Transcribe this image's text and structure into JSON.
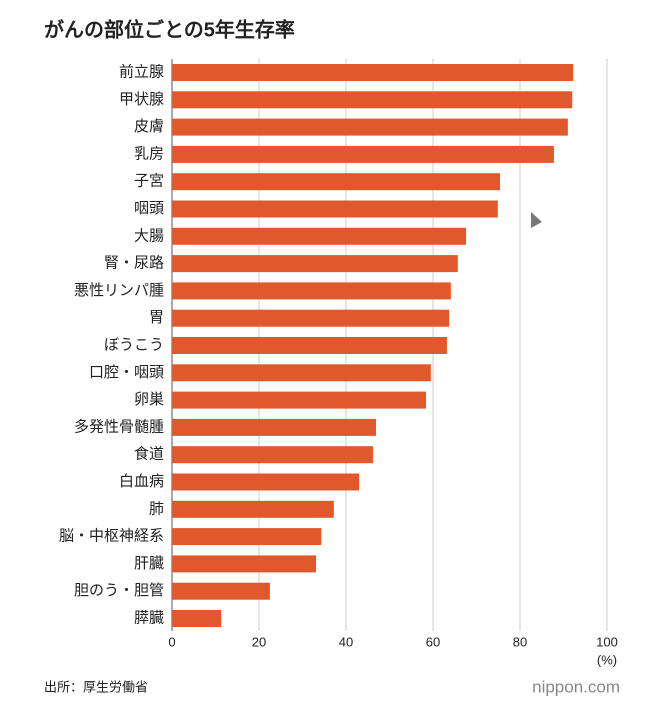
{
  "chart_data": {
    "type": "hbar",
    "title": "がんの部位ごとの5年生存率",
    "categories": [
      "前立腺",
      "甲状腺",
      "皮膚",
      "乳房",
      "子宮",
      "咽頭",
      "大腸",
      "腎・尿路",
      "悪性リンパ腫",
      "胃",
      "ぼうこう",
      "口腔・咽頭",
      "卵巣",
      "多発性骨髄腫",
      "食道",
      "白血病",
      "肺",
      "脳・中枢神経系",
      "肝臓",
      "胆のう・胆管",
      "膵臓"
    ],
    "values": [
      92.2,
      92.0,
      91.0,
      87.8,
      75.4,
      74.9,
      67.6,
      65.7,
      64.1,
      63.7,
      63.2,
      59.5,
      58.4,
      46.9,
      46.2,
      43.0,
      37.2,
      34.3,
      33.1,
      22.5,
      11.3
    ],
    "color": "#e0592c",
    "xlim": [
      0,
      100
    ],
    "xticks": [
      0,
      20,
      40,
      60,
      80,
      100
    ],
    "xlabel": "(%)",
    "grid": true,
    "source": "出所：厚生労働省",
    "brand": "nippon.com"
  }
}
